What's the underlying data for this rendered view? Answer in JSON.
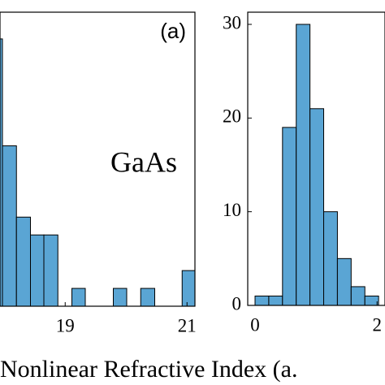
{
  "chart_data": [
    {
      "type": "histogram",
      "annotations": [
        "(a)",
        "GaAs"
      ],
      "xlabel": "Nonlinear Refractive Index (a.",
      "bins": [
        17.75,
        17.97,
        18.2,
        18.43,
        18.65,
        18.88,
        19.11,
        19.33,
        19.56,
        19.79,
        20.01,
        20.24,
        20.47,
        20.69,
        20.92,
        21.15
      ],
      "values": [
        15,
        9,
        5,
        4,
        4,
        0,
        1,
        0,
        0,
        1,
        0,
        1,
        0,
        0,
        2
      ],
      "color": "#5aa5d4",
      "xlim": [
        17.93,
        21.13
      ],
      "ylim": [
        0,
        16.5
      ],
      "xticks": [
        19,
        21
      ]
    },
    {
      "type": "histogram",
      "bins": [
        0,
        0.225,
        0.45,
        0.675,
        0.9,
        1.125,
        1.35,
        1.575,
        1.8,
        2.025
      ],
      "values": [
        1,
        1,
        19,
        30,
        21,
        10,
        5,
        2,
        1
      ],
      "color": "#5aa5d4",
      "xlim": [
        -0.12,
        2.13
      ],
      "ylim": [
        0,
        31.3
      ],
      "xticks": [
        0,
        2
      ],
      "yticks": [
        0,
        10,
        20,
        30
      ]
    }
  ]
}
